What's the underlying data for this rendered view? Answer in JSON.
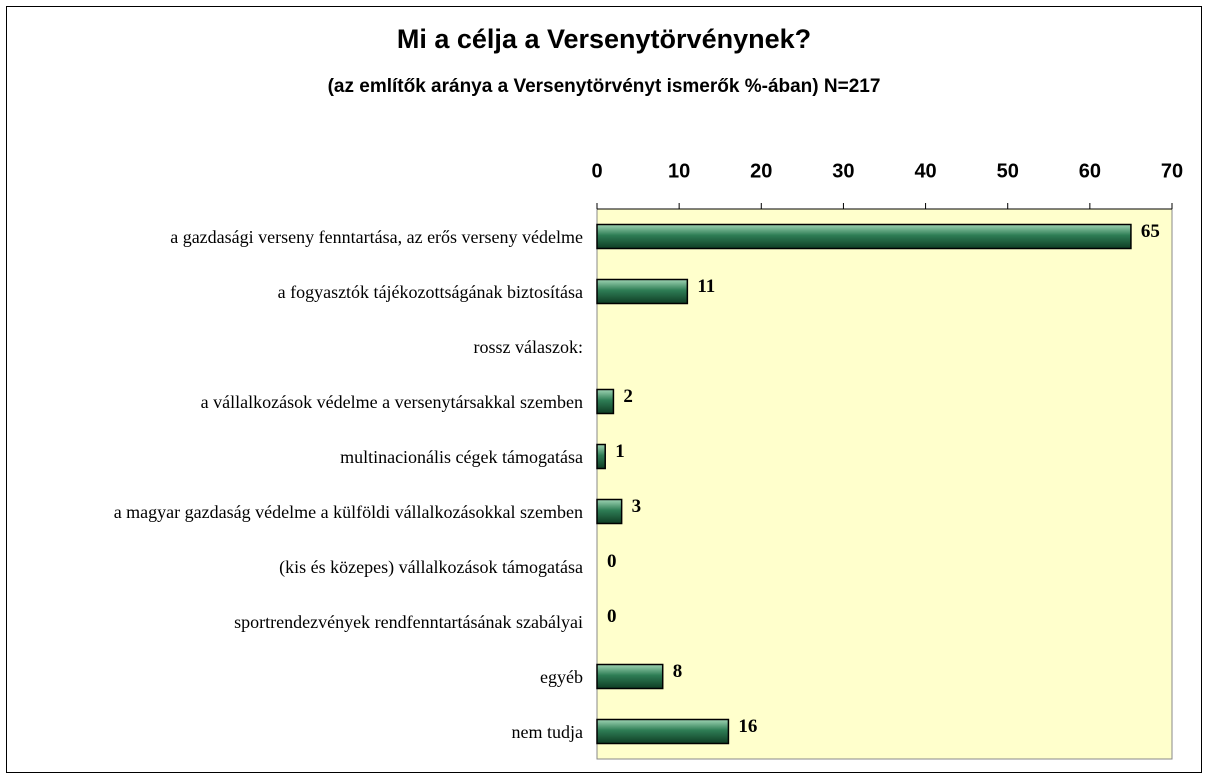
{
  "chart_data": {
    "type": "bar",
    "orientation": "horizontal",
    "title": "Mi a célja a Versenytörvénynek?",
    "subtitle": "(az említők aránya a Versenytörvényt ismerők %-ában) N=217",
    "categories": [
      "a gazdasági verseny fenntartása, az erős verseny védelme",
      "a fogyasztók tájékozottságának biztosítása",
      "rossz válaszok:",
      "a vállalkozások védelme a versenytársakkal szemben",
      "multinacionális cégek támogatása",
      "a magyar gazdaság védelme a külföldi vállalkozásokkal szemben",
      "(kis és közepes) vállalkozások támogatása",
      "sportrendezvények rendfenntartásának szabályai",
      "egyéb",
      "nem tudja"
    ],
    "values": [
      65,
      11,
      null,
      2,
      1,
      3,
      0,
      0,
      8,
      16
    ],
    "color": "#2e7d55",
    "xlim": [
      0,
      70
    ],
    "xticks": [
      0,
      10,
      20,
      30,
      40,
      50,
      60,
      70
    ],
    "plot_background": "#ffffcc"
  }
}
